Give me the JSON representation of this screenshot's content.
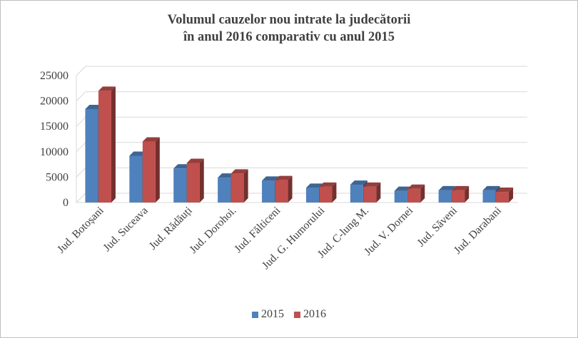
{
  "chart_data": {
    "type": "bar",
    "title_line1": "Volumul  cauzelor nou intrate la judecătorii",
    "title_line2": "în  anul 2016 comparativ cu anul 2015",
    "categories": [
      "Jud. Botoșani",
      "Jud. Suceava",
      "Jud. Rădăuți",
      "Jud. Dorohoi.",
      "Jud. Fălticeni",
      "Jud. G. Humorului",
      "Jud. C-lung M.",
      "Jud. V. Dornei",
      "Jud. Săveni",
      "Jud. Darabani"
    ],
    "series": [
      {
        "name": "2015",
        "color": "#4F81BD",
        "values": [
          18400,
          9200,
          6700,
          4900,
          4300,
          2900,
          3500,
          2300,
          2400,
          2400
        ]
      },
      {
        "name": "2016",
        "color": "#C0504D",
        "values": [
          22000,
          12000,
          7800,
          5700,
          4400,
          3100,
          3100,
          2700,
          2400,
          2100
        ]
      }
    ],
    "yticks": [
      "0",
      "5000",
      "10000",
      "15000",
      "20000",
      "25000"
    ],
    "ylim": [
      0,
      25000
    ],
    "grid": true,
    "legend": "bottom"
  }
}
